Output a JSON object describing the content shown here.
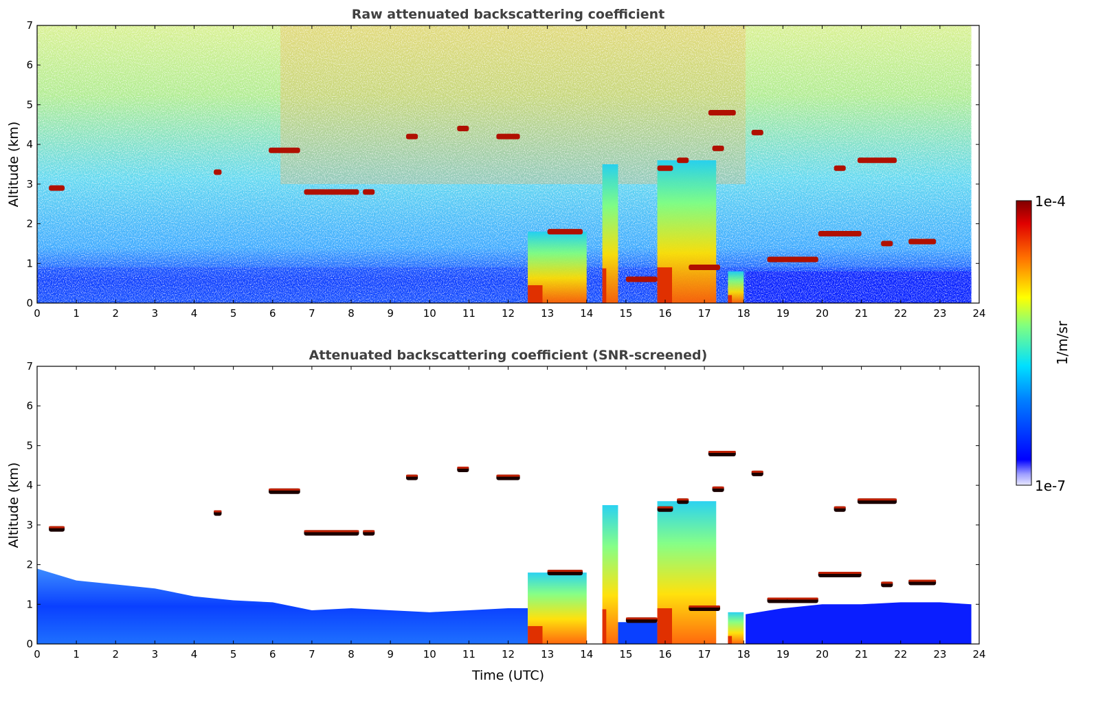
{
  "colorbar": {
    "label": "1/m/sr",
    "max_label": "1e-4",
    "min_label": "1e-7",
    "range": [
      1e-07,
      0.0001
    ],
    "scale": "log",
    "colormap": "jet"
  },
  "chart_data": [
    {
      "type": "heatmap",
      "title": "Raw attenuated backscattering coefficient",
      "xlabel": "",
      "ylabel": "Altitude (km)",
      "xlim": [
        0,
        24
      ],
      "ylim": [
        0,
        7
      ],
      "x_ticks": [
        "0",
        "1",
        "2",
        "3",
        "4",
        "5",
        "6",
        "7",
        "8",
        "9",
        "10",
        "11",
        "12",
        "13",
        "14",
        "15",
        "16",
        "17",
        "18",
        "19",
        "20",
        "21",
        "22",
        "23",
        "24"
      ],
      "y_ticks": [
        "0",
        "1",
        "2",
        "3",
        "4",
        "5",
        "6",
        "7"
      ],
      "data_end_time": 23.8,
      "screened": false,
      "cloud_layers": [
        {
          "t0": 0.3,
          "t1": 0.7,
          "alt": 2.9
        },
        {
          "t0": 4.5,
          "t1": 4.7,
          "alt": 3.3
        },
        {
          "t0": 5.9,
          "t1": 6.7,
          "alt": 3.85
        },
        {
          "t0": 6.8,
          "t1": 8.2,
          "alt": 2.8
        },
        {
          "t0": 8.3,
          "t1": 8.6,
          "alt": 2.8
        },
        {
          "t0": 9.4,
          "t1": 9.7,
          "alt": 4.2
        },
        {
          "t0": 10.7,
          "t1": 11.0,
          "alt": 4.4
        },
        {
          "t0": 11.7,
          "t1": 12.3,
          "alt": 4.2
        },
        {
          "t0": 13.0,
          "t1": 13.9,
          "alt": 1.8
        },
        {
          "t0": 15.0,
          "t1": 15.8,
          "alt": 0.6
        },
        {
          "t0": 15.8,
          "t1": 16.2,
          "alt": 3.4
        },
        {
          "t0": 16.3,
          "t1": 16.6,
          "alt": 3.6
        },
        {
          "t0": 16.6,
          "t1": 17.4,
          "alt": 0.9
        },
        {
          "t0": 17.2,
          "t1": 17.5,
          "alt": 3.9
        },
        {
          "t0": 17.1,
          "t1": 17.8,
          "alt": 4.8
        },
        {
          "t0": 18.2,
          "t1": 18.5,
          "alt": 4.3
        },
        {
          "t0": 18.6,
          "t1": 19.2,
          "alt": 1.1
        },
        {
          "t0": 19.1,
          "t1": 19.9,
          "alt": 1.1
        },
        {
          "t0": 19.9,
          "t1": 21.0,
          "alt": 1.75
        },
        {
          "t0": 20.3,
          "t1": 20.6,
          "alt": 3.4
        },
        {
          "t0": 20.9,
          "t1": 21.9,
          "alt": 3.6
        },
        {
          "t0": 21.5,
          "t1": 21.8,
          "alt": 1.5
        },
        {
          "t0": 22.2,
          "t1": 22.9,
          "alt": 1.55
        }
      ],
      "precip_columns": [
        {
          "t0": 12.5,
          "t1": 14.0,
          "top": 1.8
        },
        {
          "t0": 14.4,
          "t1": 14.8,
          "top": 3.5
        },
        {
          "t0": 15.8,
          "t1": 17.3,
          "top": 3.6
        },
        {
          "t0": 17.6,
          "t1": 18.0,
          "top": 0.8
        }
      ]
    },
    {
      "type": "heatmap",
      "title": "Attenuated backscattering coefficient (SNR-screened)",
      "xlabel": "Time (UTC)",
      "ylabel": "Altitude (km)",
      "xlim": [
        0,
        24
      ],
      "ylim": [
        0,
        7
      ],
      "x_ticks": [
        "0",
        "1",
        "2",
        "3",
        "4",
        "5",
        "6",
        "7",
        "8",
        "9",
        "10",
        "11",
        "12",
        "13",
        "14",
        "15",
        "16",
        "17",
        "18",
        "19",
        "20",
        "21",
        "22",
        "23",
        "24"
      ],
      "y_ticks": [
        "0",
        "1",
        "2",
        "3",
        "4",
        "5",
        "6",
        "7"
      ],
      "data_end_time": 23.8,
      "screened": true
    }
  ]
}
